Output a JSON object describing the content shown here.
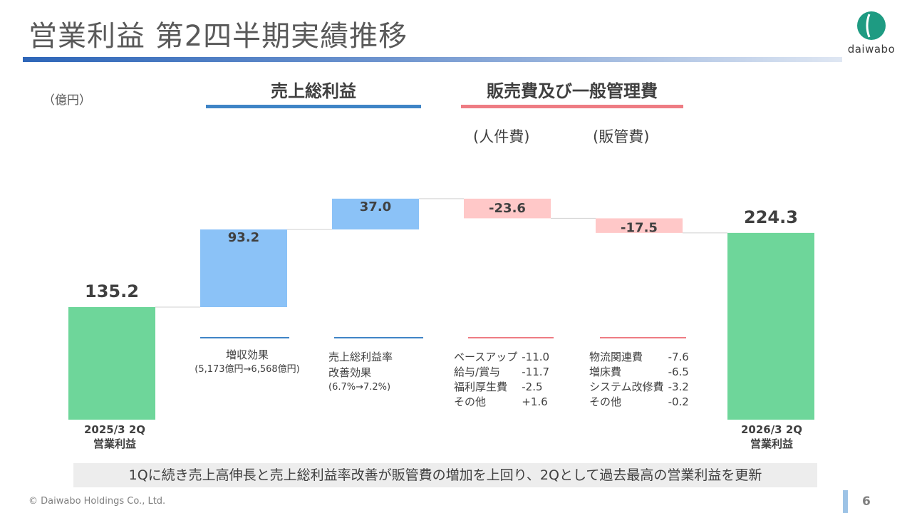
{
  "title": "営業利益 第2四半期実績推移",
  "logo_text": "daiwabo",
  "unit": "（億円）",
  "sections": {
    "gross_profit": "売上総利益",
    "sga": "販売費及び一般管理費",
    "sga_personnel": "(人件費)",
    "sga_sales": "(販管費)"
  },
  "colors": {
    "total": "#6ed69a",
    "increase": "#8bc2f7",
    "decrease": "#ffc8c8",
    "gross_rule": "#3f84c6",
    "sga_rule": "#ee7c83"
  },
  "chart_data": {
    "type": "waterfall",
    "title": "営業利益 第2四半期実績推移",
    "ylabel": "（億円）",
    "ylim": [
      0,
      270
    ],
    "start": 135.2,
    "steps": [
      {
        "name": "増収効果",
        "value": 93.2,
        "label": "93.2"
      },
      {
        "name": "売上総利益率改善効果",
        "value": 37.0,
        "label": "37.0"
      },
      {
        "name": "人件費",
        "value": -23.6,
        "label": "-23.6"
      },
      {
        "name": "販管費",
        "value": -17.5,
        "label": "-17.5"
      }
    ],
    "end": 224.3,
    "start_label": "135.2",
    "end_label": "224.3",
    "categories": [
      "2025/3 2Q 営業利益",
      "増収効果",
      "売上総利益率改善効果",
      "人件費",
      "販管費",
      "2026/3 2Q 営業利益"
    ]
  },
  "categories": {
    "start": {
      "line1": "2025/3 2Q",
      "line2": "営業利益"
    },
    "end": {
      "line1": "2026/3 2Q",
      "line2": "営業利益"
    }
  },
  "notes": {
    "revenue_effect": {
      "line1": "増収効果",
      "line2": "(5,173億円→6,568億円)"
    },
    "margin_effect": {
      "line1": "売上総利益率",
      "line2": "改善効果",
      "line3": "(6.7%→7.2%)"
    }
  },
  "personnel_breakdown": [
    {
      "item": "ベースアップ",
      "value": "-11.0"
    },
    {
      "item": "給与/賞与",
      "value": "-11.7"
    },
    {
      "item": "福利厚生費",
      "value": "-2.5"
    },
    {
      "item": "その他",
      "value": "+1.6"
    }
  ],
  "sga_breakdown": [
    {
      "item": "物流関連費",
      "value": "-7.6"
    },
    {
      "item": "増床費",
      "value": "-6.5"
    },
    {
      "item": "システム改修費",
      "value": "-3.2"
    },
    {
      "item": "その他",
      "value": "-0.2"
    }
  ],
  "summary": "1Qに続き売上高伸長と売上総利益率改善が販管費の増加を上回り、2Qとして過去最高の営業利益を更新",
  "footer": "© Daiwabo Holdings Co., Ltd.",
  "page_number": "6"
}
